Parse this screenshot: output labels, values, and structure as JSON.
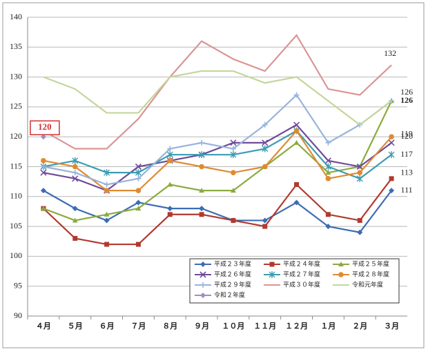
{
  "chart_data": {
    "type": "line",
    "categories": [
      "４月",
      "５月",
      "６月",
      "７月",
      "８月",
      "９月",
      "１０月",
      "１１月",
      "１２月",
      "１月",
      "２月",
      "３月"
    ],
    "ylim": [
      90,
      140
    ],
    "yticks": [
      90,
      95,
      100,
      105,
      110,
      115,
      120,
      125,
      130,
      135,
      140
    ],
    "grid": true,
    "series": [
      {
        "name": "平成２３年度",
        "color": "#3b6cb4",
        "marker": "diamond",
        "values": [
          111,
          108,
          106,
          109,
          108,
          108,
          106,
          106,
          109,
          105,
          104,
          111
        ]
      },
      {
        "name": "平成２４年度",
        "color": "#b03a2e",
        "marker": "square",
        "values": [
          108,
          103,
          102,
          102,
          107,
          107,
          106,
          105,
          112,
          107,
          106,
          113
        ]
      },
      {
        "name": "平成２５年度",
        "color": "#8aab3f",
        "marker": "triangle",
        "values": [
          108,
          106,
          107,
          108,
          112,
          111,
          111,
          115,
          119,
          114,
          115,
          126
        ]
      },
      {
        "name": "平成２６年度",
        "color": "#6e4a9a",
        "marker": "x",
        "values": [
          114,
          113,
          111,
          115,
          116,
          117,
          119,
          119,
          122,
          116,
          115,
          119
        ]
      },
      {
        "name": "平成２７年度",
        "color": "#3a9cb0",
        "marker": "star",
        "values": [
          115,
          116,
          114,
          114,
          117,
          117,
          117,
          118,
          121,
          115,
          113,
          117
        ]
      },
      {
        "name": "平成２８年度",
        "color": "#e08a30",
        "marker": "circle",
        "values": [
          116,
          115,
          111,
          111,
          116,
          115,
          114,
          115,
          121,
          113,
          114,
          120
        ]
      },
      {
        "name": "平成２９年度",
        "color": "#98b4dc",
        "marker": "plus",
        "values": [
          115,
          114,
          112,
          113,
          118,
          119,
          118,
          122,
          127,
          119,
          122,
          126
        ]
      },
      {
        "name": "平成３０年度",
        "color": "#d99594",
        "marker": "none",
        "values": [
          121,
          118,
          118,
          123,
          130,
          136,
          133,
          131,
          137,
          128,
          127,
          132
        ]
      },
      {
        "name": "令和元年度",
        "color": "#c3d69b",
        "marker": "none",
        "values": [
          130,
          128,
          124,
          124,
          130,
          131,
          131,
          129,
          130,
          126,
          122,
          126
        ]
      },
      {
        "name": "令和２年度",
        "color": "#a08cc8",
        "marker": "diamond",
        "values": [
          120,
          null,
          null,
          null,
          null,
          null,
          null,
          null,
          null,
          null,
          null,
          null
        ]
      }
    ]
  }
}
